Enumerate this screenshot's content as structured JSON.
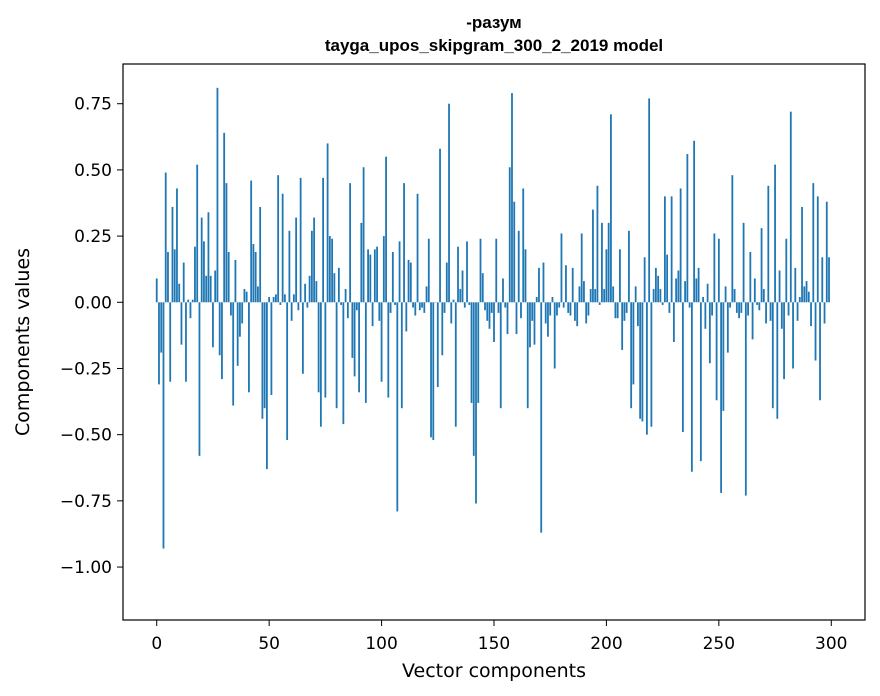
{
  "chart_data": {
    "type": "bar",
    "title": "-разум",
    "subtitle": "tayga_upos_skipgram_300_2_2019 model",
    "xlabel": "Vector components",
    "ylabel": "Components values",
    "xlim": [
      -15,
      315
    ],
    "ylim": [
      -1.2,
      0.9
    ],
    "xticks": [
      0,
      50,
      100,
      150,
      200,
      250,
      300
    ],
    "xtick_labels": [
      "0",
      "50",
      "100",
      "150",
      "200",
      "250",
      "300"
    ],
    "yticks": [
      -1.0,
      -0.75,
      -0.5,
      -0.25,
      0.0,
      0.25,
      0.5,
      0.75
    ],
    "ytick_labels": [
      "−1.00",
      "−0.75",
      "−0.50",
      "−0.25",
      "0.00",
      "0.25",
      "0.50",
      "0.75"
    ],
    "color": "#1f77b4",
    "grid": false,
    "values": [
      0.09,
      -0.31,
      -0.19,
      -0.93,
      0.49,
      0.19,
      -0.3,
      0.36,
      0.2,
      0.43,
      0.07,
      -0.16,
      0.15,
      -0.3,
      0.01,
      -0.06,
      0.01,
      0.21,
      0.52,
      -0.58,
      0.32,
      0.23,
      0.1,
      0.34,
      0.1,
      -0.17,
      0.12,
      0.81,
      -0.2,
      -0.29,
      0.64,
      0.45,
      0.19,
      -0.05,
      -0.39,
      0.16,
      -0.24,
      -0.13,
      -0.08,
      0.05,
      0.04,
      -0.34,
      0.46,
      0.22,
      0.19,
      0.06,
      0.36,
      -0.44,
      -0.4,
      -0.63,
      0.02,
      -0.35,
      0.02,
      0.03,
      0.48,
      -0.01,
      0.41,
      0.03,
      -0.52,
      0.27,
      -0.07,
      0.03,
      0.32,
      -0.03,
      0.47,
      -0.27,
      0.07,
      -0.02,
      0.1,
      0.27,
      0.32,
      0.08,
      -0.34,
      -0.47,
      0.47,
      -0.36,
      0.6,
      0.25,
      0.24,
      0.11,
      -0.4,
      0.13,
      -0.01,
      -0.46,
      0.05,
      -0.06,
      0.45,
      -0.21,
      -0.28,
      -0.03,
      -0.34,
      0.3,
      0.51,
      -0.38,
      0.2,
      0.18,
      -0.09,
      0.2,
      0.21,
      -0.07,
      -0.3,
      0.25,
      0.55,
      -0.36,
      -0.04,
      0.19,
      -0.01,
      -0.79,
      0.23,
      -0.4,
      0.45,
      -0.11,
      0.16,
      0.15,
      -0.02,
      -0.05,
      0.41,
      -0.03,
      -0.02,
      -0.04,
      0.06,
      0.24,
      -0.51,
      -0.52,
      0.0,
      -0.32,
      0.58,
      -0.2,
      -0.04,
      0.15,
      0.75,
      -0.08,
      0.01,
      -0.47,
      0.21,
      0.05,
      0.12,
      -0.02,
      0.23,
      -0.01,
      -0.38,
      -0.58,
      -0.76,
      -0.38,
      0.24,
      0.11,
      -0.03,
      -0.07,
      -0.1,
      -0.04,
      -0.15,
      0.24,
      -0.04,
      -0.4,
      0.09,
      -0.02,
      -0.12,
      0.51,
      0.79,
      0.38,
      -0.12,
      0.27,
      -0.06,
      0.43,
      0.2,
      -0.4,
      -0.17,
      -0.07,
      -0.16,
      0.02,
      0.13,
      -0.87,
      0.15,
      -0.08,
      -0.13,
      -0.05,
      0.02,
      -0.25,
      -0.05,
      -0.02,
      0.26,
      -0.02,
      0.14,
      -0.04,
      -0.05,
      0.13,
      -0.07,
      -0.09,
      0.06,
      0.26,
      0.08,
      -0.08,
      -0.05,
      0.05,
      0.35,
      0.05,
      0.44,
      -0.01,
      0.3,
      0.05,
      0.2,
      0.3,
      0.71,
      0.06,
      -0.06,
      -0.06,
      0.2,
      -0.18,
      -0.07,
      -0.04,
      0.27,
      -0.4,
      -0.31,
      0.06,
      -0.09,
      -0.44,
      -0.45,
      0.17,
      -0.5,
      0.77,
      -0.47,
      0.05,
      0.13,
      0.1,
      0.05,
      -0.01,
      0.4,
      0.18,
      -0.04,
      0.4,
      -0.15,
      0.09,
      0.12,
      0.43,
      -0.49,
      0.08,
      0.56,
      -0.02,
      -0.64,
      0.61,
      0.09,
      0.13,
      -0.6,
      0.02,
      -0.1,
      0.07,
      -0.23,
      -0.05,
      0.26,
      -0.37,
      0.24,
      -0.72,
      -0.41,
      0.06,
      -0.19,
      -0.02,
      0.48,
      0.05,
      -0.04,
      -0.06,
      -0.04,
      0.3,
      -0.73,
      -0.05,
      0.19,
      -0.14,
      0.09,
      -0.01,
      -0.03,
      0.28,
      0.05,
      -0.08,
      0.44,
      -0.07,
      -0.4,
      0.52,
      -0.44,
      0.12,
      -0.1,
      -0.29,
      0.24,
      -0.05,
      0.72,
      -0.25,
      0.13,
      -0.07,
      0.02,
      0.36,
      0.06,
      0.08,
      0.04,
      -0.09,
      0.45,
      -0.22,
      0.4,
      -0.37,
      0.17,
      -0.08,
      0.38,
      0.17
    ]
  }
}
